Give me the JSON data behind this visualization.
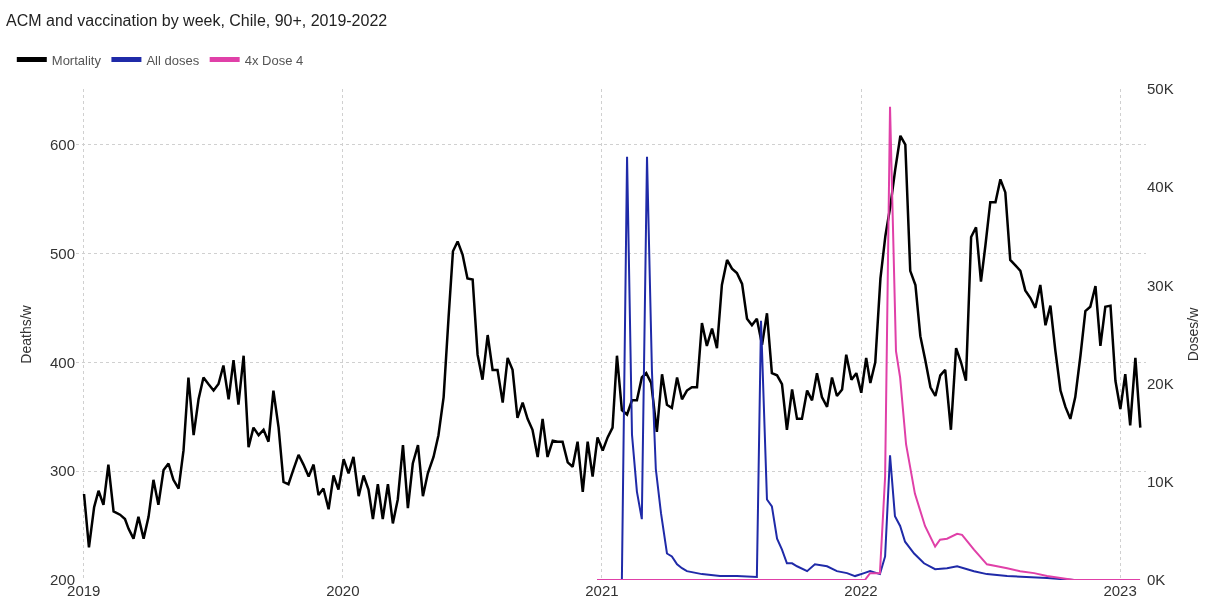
{
  "chart_data": {
    "type": "line",
    "title": "ACM and vaccination by week, Chile, 90+, 2019-2022",
    "ylabel": "Deaths/w",
    "y2label": "Doses/w",
    "xlim": [
      2018.97,
      2023.1
    ],
    "xticks": [
      2019,
      2020,
      2021,
      2022,
      2023
    ],
    "ylim": [
      200,
      651
    ],
    "yticks": [
      200,
      300,
      400,
      500,
      600
    ],
    "y2lim": [
      0,
      50000
    ],
    "y2ticks": [
      {
        "value": 0,
        "label": "0K"
      },
      {
        "value": 10000,
        "label": "10K"
      },
      {
        "value": 20000,
        "label": "20K"
      },
      {
        "value": 30000,
        "label": "30K"
      },
      {
        "value": 40000,
        "label": "40K"
      },
      {
        "value": 50000,
        "label": "50K"
      }
    ],
    "grid": true,
    "legend": "top left",
    "line_style": "solid",
    "marker": "none",
    "series": [
      {
        "name": "Mortality",
        "color": "#000000",
        "x": [
          2019.001,
          2019.02,
          2019.04,
          2019.057,
          2019.076,
          2019.095,
          2019.115,
          2019.14,
          2019.159,
          2019.173,
          2019.192,
          2019.211,
          2019.231,
          2019.25,
          2019.269,
          2019.288,
          2019.308,
          2019.327,
          2019.346,
          2019.366,
          2019.385,
          2019.404,
          2019.424,
          2019.443,
          2019.462,
          2019.481,
          2019.501,
          2019.52,
          2019.539,
          2019.559,
          2019.578,
          2019.597,
          2019.617,
          2019.636,
          2019.655,
          2019.675,
          2019.694,
          2019.713,
          2019.732,
          2019.752,
          2019.771,
          2019.79,
          2019.81,
          2019.829,
          2019.848,
          2019.868,
          2019.887,
          2019.906,
          2019.925,
          2019.945,
          2019.964,
          2019.983,
          2020.003,
          2020.022,
          2020.041,
          2020.061,
          2020.08,
          2020.099,
          2020.116,
          2020.135,
          2020.154,
          2020.174,
          2020.193,
          2020.212,
          2020.232,
          2020.251,
          2020.27,
          2020.29,
          2020.309,
          2020.328,
          2020.35,
          2020.369,
          2020.389,
          2020.408,
          2020.425,
          2020.443,
          2020.462,
          2020.481,
          2020.501,
          2020.52,
          2020.539,
          2020.559,
          2020.578,
          2020.597,
          2020.617,
          2020.636,
          2020.655,
          2020.674,
          2020.694,
          2020.713,
          2020.732,
          2020.752,
          2020.771,
          2020.79,
          2020.81,
          2020.829,
          2020.848,
          2020.868,
          2020.887,
          2020.906,
          2020.926,
          2020.945,
          2020.964,
          2020.983,
          2021.003,
          2021.022,
          2021.041,
          2021.058,
          2021.077,
          2021.097,
          2021.116,
          2021.135,
          2021.154,
          2021.171,
          2021.19,
          2021.212,
          2021.232,
          2021.251,
          2021.27,
          2021.29,
          2021.309,
          2021.328,
          2021.347,
          2021.367,
          2021.386,
          2021.405,
          2021.425,
          2021.444,
          2021.463,
          2021.483,
          2021.502,
          2021.521,
          2021.541,
          2021.56,
          2021.579,
          2021.598,
          2021.618,
          2021.637,
          2021.656,
          2021.676,
          2021.695,
          2021.714,
          2021.734,
          2021.753,
          2021.772,
          2021.792,
          2021.811,
          2021.83,
          2021.849,
          2021.869,
          2021.888,
          2021.907,
          2021.927,
          2021.943,
          2021.963,
          2021.982,
          2022.001,
          2022.02,
          2022.036,
          2022.055,
          2022.075,
          2022.094,
          2022.113,
          2022.132,
          2022.152,
          2022.171,
          2022.19,
          2022.21,
          2022.229,
          2022.248,
          2022.268,
          2022.287,
          2022.306,
          2022.325,
          2022.347,
          2022.367,
          2022.386,
          2022.405,
          2022.425,
          2022.444,
          2022.463,
          2022.48,
          2022.499,
          2022.519,
          2022.538,
          2022.557,
          2022.576,
          2022.596,
          2022.615,
          2022.634,
          2022.654,
          2022.673,
          2022.692,
          2022.712,
          2022.731,
          2022.75,
          2022.77,
          2022.789,
          2022.808,
          2022.827,
          2022.847,
          2022.866,
          2022.885,
          2022.905,
          2022.924,
          2022.943,
          2022.963,
          2022.982,
          2023.001,
          2023.02,
          2023.039,
          2023.059,
          2023.078
        ],
        "values": [
          279,
          230,
          267,
          282,
          269,
          306,
          263,
          260,
          256,
          247,
          238,
          258,
          238,
          258,
          292,
          269,
          301,
          307,
          292,
          284,
          319,
          386,
          333,
          366,
          386,
          380,
          374,
          380,
          397,
          366,
          402,
          361,
          406,
          322,
          340,
          333,
          338,
          327,
          374,
          340,
          290,
          288,
          302,
          315,
          306,
          295,
          306,
          278,
          284,
          265,
          296,
          283,
          311,
          298,
          313,
          277,
          296,
          283,
          256,
          288,
          256,
          288,
          252,
          274,
          324,
          266,
          307,
          324,
          277,
          298,
          313,
          333,
          368,
          441,
          502,
          511,
          499,
          477,
          476,
          407,
          384,
          425,
          393,
          393,
          363,
          404,
          393,
          349,
          363,
          348,
          338,
          313,
          348,
          313,
          328,
          327,
          327,
          308,
          304,
          327,
          281,
          327,
          295,
          331,
          319,
          331,
          340,
          406,
          356,
          352,
          365,
          365,
          386,
          390,
          381,
          336,
          389,
          361,
          358,
          386,
          366,
          374,
          377,
          377,
          436,
          415,
          431,
          413,
          471,
          494,
          486,
          482,
          472,
          440,
          434,
          440,
          416,
          445,
          390,
          388,
          380,
          338,
          375,
          348,
          348,
          374,
          365,
          390,
          368,
          359,
          386,
          369,
          375,
          407,
          384,
          390,
          372,
          404,
          381,
          400,
          477,
          516,
          543,
          577,
          608,
          600,
          484,
          471,
          424,
          402,
          377,
          369,
          388,
          393,
          338,
          413,
          400,
          383,
          515,
          524,
          474,
          507,
          547,
          547,
          568,
          556,
          494,
          489,
          484,
          466,
          459,
          450,
          471,
          434,
          452,
          411,
          374,
          359,
          348,
          368,
          406,
          447,
          451,
          470,
          415,
          451,
          452,
          383,
          357,
          389,
          342,
          404,
          340
        ]
      },
      {
        "name": "All doses",
        "color": "#1f2aa8",
        "axis": "y2",
        "x": [
          2020.981,
          2021.077,
          2021.097,
          2021.116,
          2021.135,
          2021.154,
          2021.174,
          2021.193,
          2021.208,
          2021.228,
          2021.251,
          2021.27,
          2021.29,
          2021.309,
          2021.328,
          2021.386,
          2021.456,
          2021.521,
          2021.598,
          2021.614,
          2021.637,
          2021.656,
          2021.676,
          2021.695,
          2021.714,
          2021.734,
          2021.753,
          2021.792,
          2021.822,
          2021.869,
          2021.907,
          2021.946,
          2021.977,
          2022.012,
          2022.035,
          2022.073,
          2022.093,
          2022.112,
          2022.131,
          2022.151,
          2022.17,
          2022.205,
          2022.243,
          2022.286,
          2022.332,
          2022.371,
          2022.436,
          2022.486,
          2022.564,
          2022.718,
          2022.822,
          2023.077
        ],
        "values": [
          0,
          0,
          43100,
          14800,
          9000,
          6200,
          43100,
          21300,
          11300,
          6800,
          2700,
          2400,
          1600,
          1200,
          900,
          600,
          400,
          400,
          300,
          26400,
          8200,
          7500,
          4200,
          3100,
          1700,
          1700,
          1400,
          900,
          1600,
          1400,
          900,
          700,
          400,
          700,
          900,
          600,
          2400,
          12700,
          6500,
          5500,
          3900,
          2700,
          1700,
          1100,
          1200,
          1400,
          900,
          600,
          400,
          200,
          0,
          0
        ]
      },
      {
        "name": "4x Dose 4",
        "color": "#e040a8",
        "axis": "y2",
        "x": [
          2020.981,
          2022.015,
          2022.035,
          2022.073,
          2022.093,
          2022.112,
          2022.135,
          2022.151,
          2022.174,
          2022.208,
          2022.247,
          2022.286,
          2022.305,
          2022.332,
          2022.371,
          2022.39,
          2022.436,
          2022.486,
          2022.525,
          2022.564,
          2022.614,
          2022.668,
          2022.718,
          2022.822,
          2023.077
        ],
        "values": [
          0,
          0,
          700,
          700,
          10500,
          48200,
          23300,
          20600,
          13800,
          8800,
          5500,
          3400,
          4100,
          4200,
          4700,
          4600,
          3100,
          1600,
          1400,
          1200,
          900,
          700,
          400,
          0,
          0
        ]
      }
    ]
  }
}
